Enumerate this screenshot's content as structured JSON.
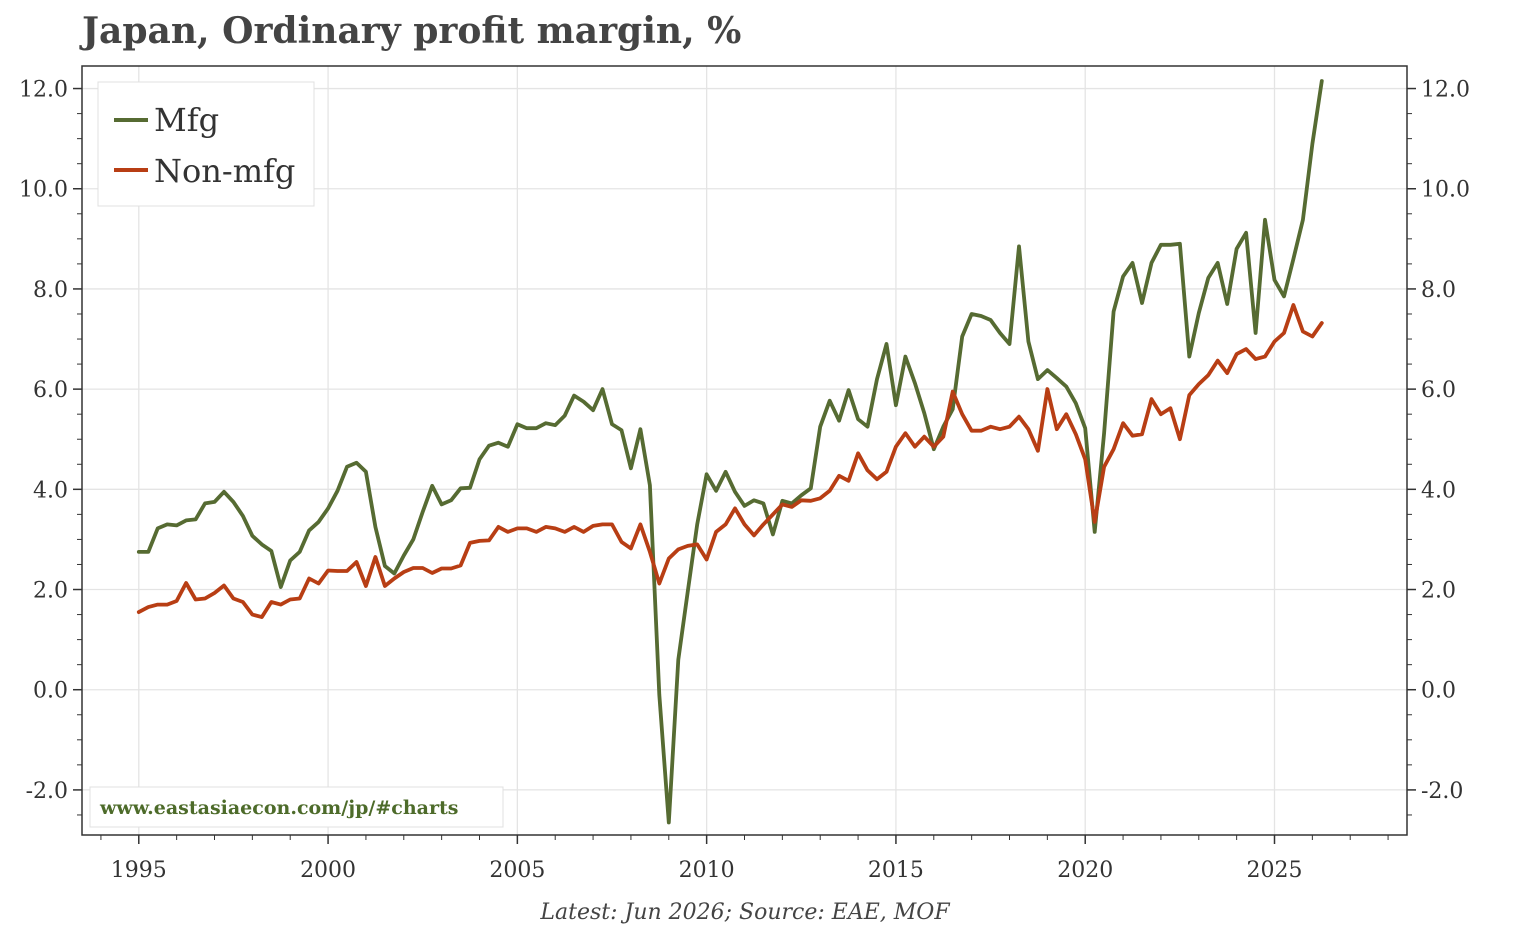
{
  "title": "Japan, Ordinary profit margin, %",
  "source_note": "Latest: Jun 2026; Source: EAE, MOF",
  "watermark": "www.eastasiaecon.com/jp/#charts",
  "colors": {
    "mfg": "#566b32",
    "non_mfg": "#b83e14",
    "text": "#333333",
    "title": "#444444"
  },
  "chart_data": {
    "type": "line",
    "title": "Japan, Ordinary profit margin, %",
    "xlabel": "",
    "ylabel": "",
    "xlim": [
      1993.5,
      2028.5
    ],
    "ylim": [
      -2.9,
      12.45
    ],
    "x_ticks": [
      1995,
      2000,
      2005,
      2010,
      2015,
      2020,
      2025
    ],
    "x_tick_labels": [
      "1995",
      "2000",
      "2005",
      "2010",
      "2015",
      "2020",
      "2025"
    ],
    "y_ticks": [
      -2,
      0,
      2,
      4,
      6,
      8,
      10,
      12
    ],
    "y_tick_labels": [
      "-2.0",
      "0.0",
      "2.0",
      "4.0",
      "6.0",
      "8.0",
      "10.0",
      "12.0"
    ],
    "grid": true,
    "legend_position": "top-left",
    "x_start": 1995.0,
    "x_step": 0.25,
    "series": [
      {
        "name": "Mfg",
        "color": "#566b32",
        "values": [
          2.75,
          2.75,
          3.22,
          3.3,
          3.28,
          3.38,
          3.4,
          3.72,
          3.75,
          3.95,
          3.75,
          3.47,
          3.07,
          2.9,
          2.77,
          2.05,
          2.58,
          2.75,
          3.18,
          3.35,
          3.62,
          3.97,
          4.45,
          4.53,
          4.35,
          3.25,
          2.47,
          2.32,
          2.68,
          3.0,
          3.55,
          4.07,
          3.7,
          3.78,
          4.02,
          4.03,
          4.6,
          4.87,
          4.93,
          4.85,
          5.3,
          5.22,
          5.22,
          5.32,
          5.28,
          5.47,
          5.87,
          5.75,
          5.58,
          6.0,
          5.3,
          5.18,
          4.42,
          5.2,
          4.08,
          -0.1,
          -2.65,
          0.6,
          1.95,
          3.3,
          4.3,
          3.97,
          4.35,
          3.95,
          3.67,
          3.78,
          3.72,
          3.1,
          3.77,
          3.72,
          3.88,
          4.02,
          5.25,
          5.77,
          5.37,
          5.98,
          5.4,
          5.25,
          6.2,
          6.9,
          5.68,
          6.65,
          6.12,
          5.52,
          4.8,
          5.25,
          5.6,
          7.05,
          7.5,
          7.46,
          7.38,
          7.12,
          6.9,
          8.85,
          6.95,
          6.2,
          6.38,
          6.22,
          6.05,
          5.72,
          5.22,
          3.15,
          5.12,
          7.55,
          8.25,
          8.52,
          7.72,
          8.52,
          8.88,
          8.88,
          8.9,
          6.65,
          7.52,
          8.22,
          8.52,
          7.7,
          8.8,
          9.12,
          7.12,
          9.38,
          8.18,
          7.85,
          8.6,
          9.38,
          10.9,
          12.15
        ]
      },
      {
        "name": "Non-mfg",
        "color": "#b83e14",
        "values": [
          1.55,
          1.65,
          1.7,
          1.7,
          1.77,
          2.13,
          1.8,
          1.82,
          1.93,
          2.08,
          1.82,
          1.75,
          1.5,
          1.45,
          1.75,
          1.7,
          1.8,
          1.82,
          2.22,
          2.12,
          2.38,
          2.37,
          2.37,
          2.55,
          2.07,
          2.65,
          2.07,
          2.22,
          2.35,
          2.43,
          2.43,
          2.33,
          2.42,
          2.42,
          2.48,
          2.93,
          2.97,
          2.98,
          3.25,
          3.15,
          3.22,
          3.22,
          3.15,
          3.25,
          3.22,
          3.15,
          3.25,
          3.15,
          3.27,
          3.3,
          3.3,
          2.95,
          2.82,
          3.3,
          2.75,
          2.12,
          2.62,
          2.8,
          2.87,
          2.9,
          2.6,
          3.15,
          3.3,
          3.62,
          3.3,
          3.08,
          3.3,
          3.5,
          3.7,
          3.65,
          3.78,
          3.77,
          3.82,
          3.97,
          4.27,
          4.17,
          4.72,
          4.38,
          4.2,
          4.35,
          4.85,
          5.12,
          4.85,
          5.05,
          4.85,
          5.05,
          5.95,
          5.5,
          5.17,
          5.17,
          5.25,
          5.2,
          5.25,
          5.45,
          5.2,
          4.77,
          6.0,
          5.2,
          5.5,
          5.1,
          4.6,
          3.35,
          4.45,
          4.8,
          5.32,
          5.07,
          5.1,
          5.8,
          5.5,
          5.62,
          5.0,
          5.88,
          6.1,
          6.28,
          6.57,
          6.32,
          6.7,
          6.8,
          6.6,
          6.65,
          6.95,
          7.12,
          7.68,
          7.15,
          7.05,
          7.32
        ]
      }
    ]
  }
}
